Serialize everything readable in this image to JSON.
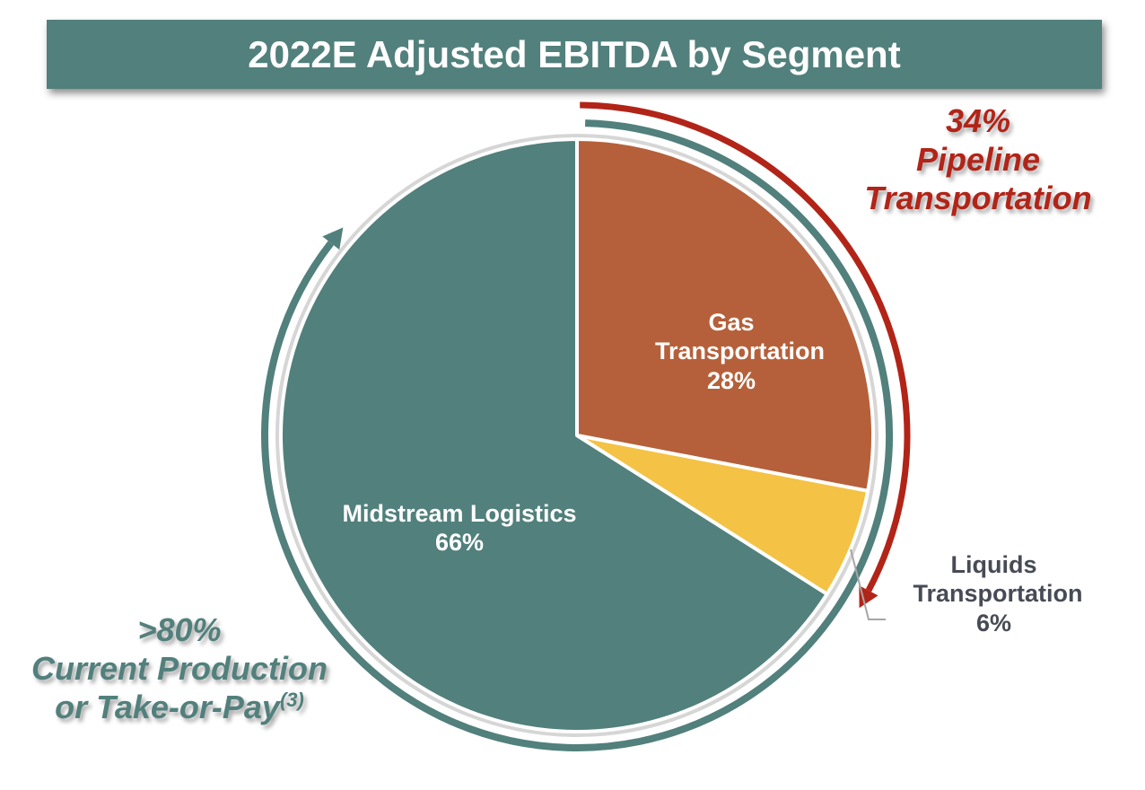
{
  "chart_data": {
    "type": "pie",
    "title": "2022E Adjusted EBITDA by Segment",
    "start_angle": "12 o'clock, clockwise",
    "slices": [
      {
        "label": "Gas Transportation",
        "value": 28,
        "value_label": "28%",
        "color": "#B5603A"
      },
      {
        "label": "Liquids Transportation",
        "value": 6,
        "value_label": "6%",
        "color": "#F4C244"
      },
      {
        "label": "Midstream Logistics",
        "value": 66,
        "value_label": "66%",
        "color": "#52807C"
      }
    ],
    "annotations": [
      {
        "pct": "34%",
        "text": "Pipeline Transportation",
        "color": "#B22418"
      },
      {
        "pct": ">80%",
        "text_line1": "Current Production",
        "text_line2": "or Take-or-Pay",
        "footnote": "(3)",
        "color": "#52807C"
      }
    ]
  }
}
